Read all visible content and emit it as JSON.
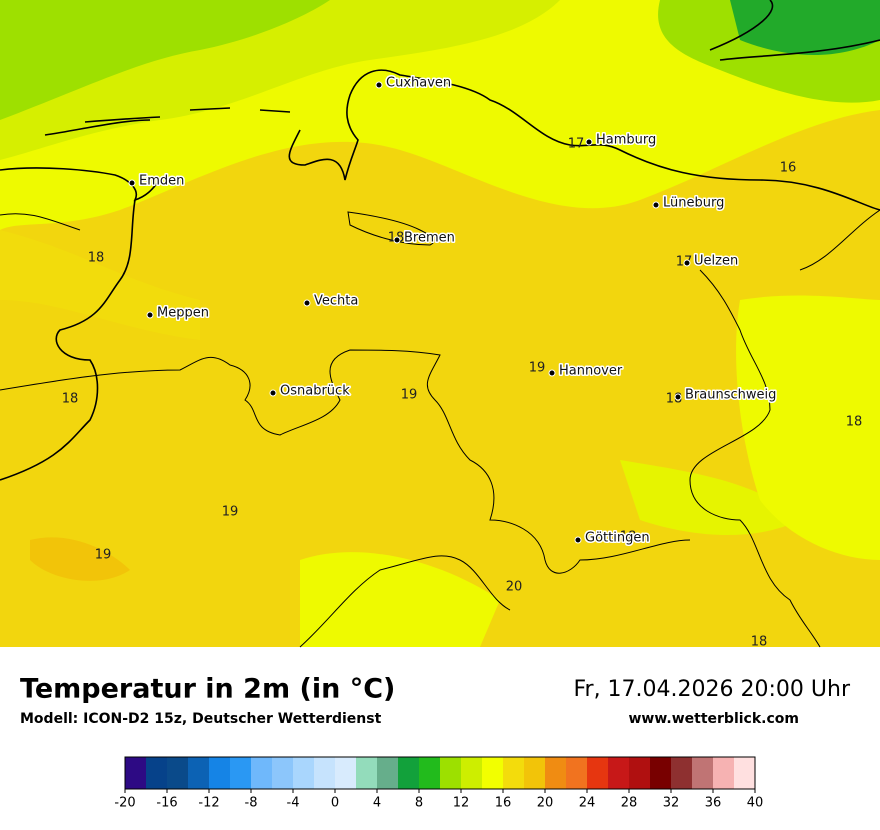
{
  "header": {
    "title": "Temperatur in 2m (in °C)",
    "model": "Modell: ICON-D2 15z, Deutscher Wetterdienst",
    "valid_time": "Fr, 17.04.2026 20:00 Uhr",
    "website": "www.wetterblick.com"
  },
  "map": {
    "cities": [
      "Cuxhaven",
      "Hamburg",
      "Emden",
      "Lüneburg",
      "Bremen",
      "Uelzen",
      "Vechta",
      "Meppen",
      "Hannover",
      "Osnabrück",
      "Braunschweig",
      "Göttingen"
    ],
    "values": [
      17,
      16,
      18,
      18,
      17,
      19,
      18,
      19,
      18,
      18,
      19,
      18,
      19,
      20,
      18
    ]
  },
  "colorbar": {
    "bins": [
      -20,
      -18,
      -16,
      -14,
      -12,
      -10,
      -8,
      -6,
      -4,
      -2,
      0,
      2,
      4,
      6,
      8,
      10,
      12,
      14,
      16,
      18,
      20,
      22,
      24,
      26,
      28,
      30,
      32,
      34,
      36,
      38,
      40
    ],
    "colors": [
      "#2d0a84",
      "#06428a",
      "#0a4a8a",
      "#0c62b4",
      "#1584e6",
      "#2a98f3",
      "#6fb8fb",
      "#8cc6fb",
      "#a9d6fd",
      "#c6e3fd",
      "#d8ebfd",
      "#93dcbb",
      "#66ae8b",
      "#12a13b",
      "#22bb1c",
      "#9de000",
      "#cdee00",
      "#f2ff00",
      "#f3dc0c",
      "#f2c409",
      "#f08c12",
      "#f1731f",
      "#e63610",
      "#c71818",
      "#b01010",
      "#780000",
      "#8e3030",
      "#c07474",
      "#f6b2b2",
      "#ffe0e0"
    ],
    "ticks": [
      -20,
      -16,
      -12,
      -8,
      -4,
      0,
      4,
      8,
      12,
      16,
      20,
      24,
      28,
      32,
      36,
      40
    ]
  }
}
